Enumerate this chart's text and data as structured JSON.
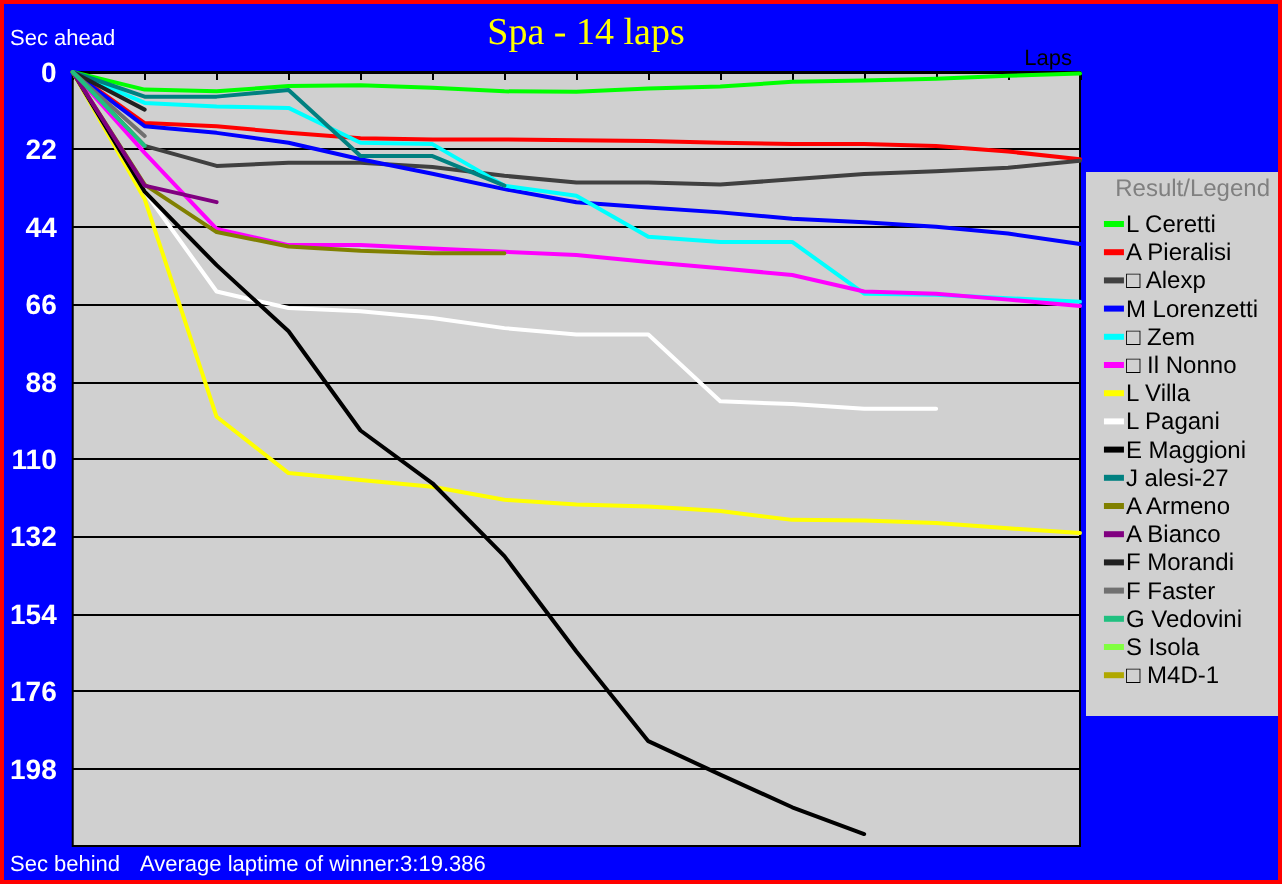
{
  "chart_data": {
    "type": "line",
    "title": "Spa - 14 laps",
    "ylabel": "Sec ahead",
    "xlabel": "Laps",
    "legend_title": "Result/Legend",
    "annotations": [
      "Sec behind",
      "Average laptime of winner:3:19.386"
    ],
    "categories": [
      null,
      null,
      null,
      null,
      null,
      null,
      null,
      null,
      null,
      null,
      null,
      null,
      null,
      null,
      null
    ],
    "ylim": [
      220,
      0
    ],
    "yticks": [
      0,
      22,
      44,
      66,
      88,
      110,
      132,
      154,
      176,
      198
    ],
    "grid": "y",
    "legend": "right",
    "marker": "none",
    "line_style": "solid",
    "series": [
      {
        "name": "L Ceretti",
        "color": "#00ff00",
        "values": [
          0,
          5,
          5.5,
          4,
          3.8,
          4.5,
          5.5,
          5.6,
          4.7,
          4.1,
          2.8,
          2.4,
          1.9,
          1.1,
          0.4
        ]
      },
      {
        "name": "A Pieralisi",
        "color": "#ff0000",
        "values": [
          0,
          14.5,
          15.4,
          17.3,
          18.8,
          19.2,
          19.2,
          19.4,
          19.6,
          20.1,
          20.5,
          20.5,
          21,
          22.6,
          24.8
        ]
      },
      {
        "name": "□ Alexp",
        "color": "#404040",
        "values": [
          0,
          21,
          26.7,
          25.8,
          25.8,
          27,
          29.5,
          31.4,
          31.4,
          32,
          30.5,
          29,
          28.2,
          27.2,
          25.2
        ]
      },
      {
        "name": "M Lorenzetti",
        "color": "#0000ff",
        "values": [
          0,
          15.4,
          17.3,
          20.1,
          24.8,
          28.9,
          33.3,
          37,
          38.5,
          39.9,
          41.7,
          42.7,
          44,
          45.9,
          48.9
        ]
      },
      {
        "name": "□ Zem",
        "color": "#00ffff",
        "values": [
          0,
          8.8,
          9.8,
          10.2,
          20.1,
          20.5,
          32.3,
          35.2,
          46.8,
          48.3,
          48.3,
          63,
          63.3,
          64.3,
          65.3
        ]
      },
      {
        "name": "□ Il Nonno",
        "color": "#ff00ff",
        "values": [
          0,
          23,
          44.6,
          49.2,
          49.2,
          50.2,
          51.1,
          52,
          54,
          55.8,
          57.7,
          62.4,
          63,
          64.7,
          66.5
        ]
      },
      {
        "name": "L Villa",
        "color": "#ffff00",
        "values": [
          0,
          36.1,
          98,
          114,
          116,
          117.9,
          121.6,
          122.9,
          123.5,
          124.8,
          127.3,
          127.5,
          128.2,
          129.7,
          131
        ]
      },
      {
        "name": "L Pagani",
        "color": "#ffffff",
        "values": [
          0,
          34,
          62.4,
          67.1,
          68,
          69.9,
          72.8,
          74.6,
          74.6,
          93.6,
          94.4,
          95.7,
          95.7,
          null,
          null
        ]
      },
      {
        "name": "E Maggioni",
        "color": "#000000",
        "values": [
          0,
          34,
          54.9,
          73.7,
          101.9,
          116.9,
          137.6,
          164.7,
          190.2,
          199.7,
          209,
          216.6,
          null,
          null,
          null
        ]
      },
      {
        "name": "J alesi-27",
        "color": "#008080",
        "values": [
          0,
          7,
          7,
          5.1,
          23.9,
          23.9,
          32.3,
          null,
          null,
          null,
          null,
          null,
          null,
          null,
          null
        ]
      },
      {
        "name": "A Armeno",
        "color": "#808000",
        "values": [
          0,
          32,
          45.5,
          49.6,
          50.8,
          51.5,
          51.5,
          null,
          null,
          null,
          null,
          null,
          null,
          null,
          null
        ]
      },
      {
        "name": "A Bianco",
        "color": "#800080",
        "values": [
          0,
          32.3,
          37,
          null,
          null,
          null,
          null,
          null,
          null,
          null,
          null,
          null,
          null,
          null,
          null
        ]
      },
      {
        "name": "F Morandi",
        "color": "#202020",
        "values": [
          0,
          10.7,
          null,
          null,
          null,
          null,
          null,
          null,
          null,
          null,
          null,
          null,
          null,
          null,
          null
        ]
      },
      {
        "name": "F Faster",
        "color": "#707070",
        "values": [
          0,
          18.2,
          null,
          null,
          null,
          null,
          null,
          null,
          null,
          null,
          null,
          null,
          null,
          null,
          null
        ]
      },
      {
        "name": "G Vedovini",
        "color": "#20c080",
        "values": [
          0,
          21,
          null,
          null,
          null,
          null,
          null,
          null,
          null,
          null,
          null,
          null,
          null,
          null,
          null
        ]
      },
      {
        "name": "S Isola",
        "color": "#80ff40",
        "values": [
          null,
          null,
          null,
          null,
          null,
          null,
          null,
          null,
          null,
          null,
          null,
          null,
          null,
          null,
          null
        ]
      },
      {
        "name": "□ M4D-1",
        "color": "#b0a800",
        "values": [
          null,
          null,
          null,
          null,
          null,
          null,
          null,
          null,
          null,
          null,
          null,
          null,
          null,
          null,
          null
        ]
      }
    ]
  }
}
